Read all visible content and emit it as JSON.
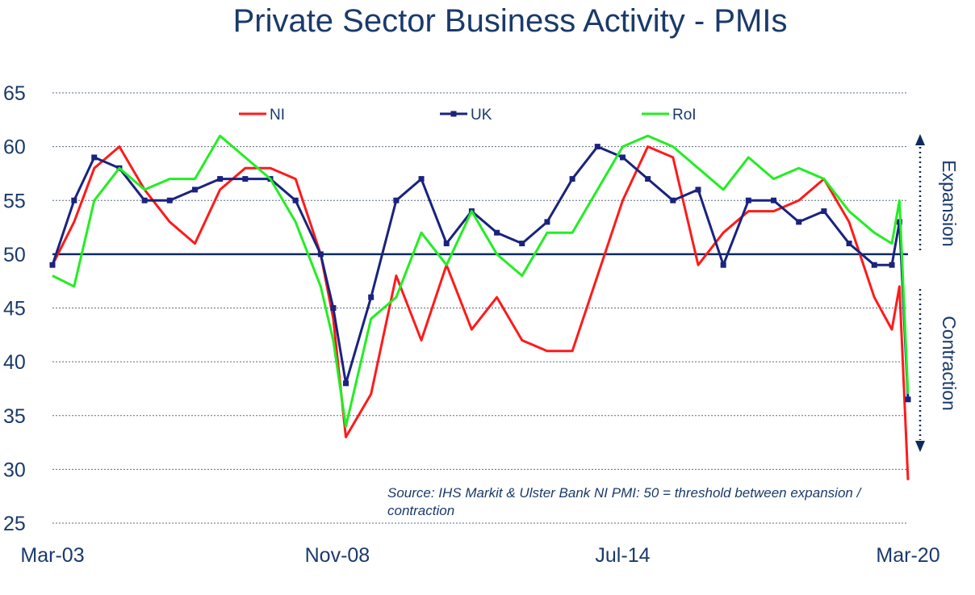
{
  "chart_data": {
    "type": "line",
    "title": "Private Sector Business Activity - PMIs",
    "ylim": [
      25,
      65
    ],
    "yticks": [
      25,
      30,
      35,
      40,
      45,
      50,
      55,
      60,
      65
    ],
    "xticks": [
      "Mar-03",
      "Nov-08",
      "Jul-14",
      "Mar-20"
    ],
    "threshold": 50,
    "grid": true,
    "legend_position": "top",
    "annotations": {
      "expansion": "Expansion",
      "contraction": "Contraction",
      "source": "Source: IHS Markit & Ulster Bank NI PMI: 50 = threshold between expansion / contraction"
    },
    "series": [
      {
        "name": "NI",
        "color": "#ff1a1a",
        "marker": false,
        "x": [
          2003.17,
          2003.6,
          2004.0,
          2004.5,
          2005.0,
          2005.5,
          2006.0,
          2006.5,
          2007.0,
          2007.5,
          2008.0,
          2008.5,
          2008.75,
          2009.0,
          2009.5,
          2010.0,
          2010.5,
          2011.0,
          2011.5,
          2012.0,
          2012.5,
          2013.0,
          2013.5,
          2014.0,
          2014.5,
          2015.0,
          2015.5,
          2016.0,
          2016.5,
          2017.0,
          2017.5,
          2018.0,
          2018.5,
          2019.0,
          2019.5,
          2019.85,
          2020.0,
          2020.17
        ],
        "y": [
          49,
          53,
          58,
          60,
          56,
          53,
          51,
          56,
          58,
          58,
          57,
          50,
          44,
          33,
          37,
          48,
          42,
          49,
          43,
          46,
          42,
          41,
          41,
          48,
          55,
          60,
          59,
          49,
          52,
          54,
          54,
          55,
          57,
          53,
          46,
          43,
          47,
          29
        ]
      },
      {
        "name": "UK",
        "color": "#1a237e",
        "marker": true,
        "x": [
          2003.17,
          2003.6,
          2004.0,
          2004.5,
          2005.0,
          2005.5,
          2006.0,
          2006.5,
          2007.0,
          2007.5,
          2008.0,
          2008.5,
          2008.75,
          2009.0,
          2009.5,
          2010.0,
          2010.5,
          2011.0,
          2011.5,
          2012.0,
          2012.5,
          2013.0,
          2013.5,
          2014.0,
          2014.5,
          2015.0,
          2015.5,
          2016.0,
          2016.5,
          2017.0,
          2017.5,
          2018.0,
          2018.5,
          2019.0,
          2019.5,
          2019.85,
          2020.0,
          2020.17
        ],
        "y": [
          49,
          55,
          59,
          58,
          55,
          55,
          56,
          57,
          57,
          57,
          55,
          50,
          45,
          38,
          46,
          55,
          57,
          51,
          54,
          52,
          51,
          53,
          57,
          60,
          59,
          57,
          55,
          56,
          49,
          55,
          55,
          53,
          54,
          51,
          49,
          49,
          53,
          36.5
        ]
      },
      {
        "name": "RoI",
        "color": "#22ee22",
        "marker": false,
        "x": [
          2003.17,
          2003.6,
          2004.0,
          2004.5,
          2005.0,
          2005.5,
          2006.0,
          2006.5,
          2007.0,
          2007.5,
          2008.0,
          2008.5,
          2008.75,
          2009.0,
          2009.5,
          2010.0,
          2010.5,
          2011.0,
          2011.5,
          2012.0,
          2012.5,
          2013.0,
          2013.5,
          2014.0,
          2014.5,
          2015.0,
          2015.5,
          2016.0,
          2016.5,
          2017.0,
          2017.5,
          2018.0,
          2018.5,
          2019.0,
          2019.5,
          2019.85,
          2020.0,
          2020.17
        ],
        "y": [
          48,
          47,
          55,
          58,
          56,
          57,
          57,
          61,
          59,
          57,
          53,
          47,
          42,
          34,
          44,
          46,
          52,
          49,
          54,
          50,
          48,
          52,
          52,
          56,
          60,
          61,
          60,
          58,
          56,
          59,
          57,
          58,
          57,
          54,
          52,
          51,
          55,
          37
        ]
      }
    ]
  }
}
